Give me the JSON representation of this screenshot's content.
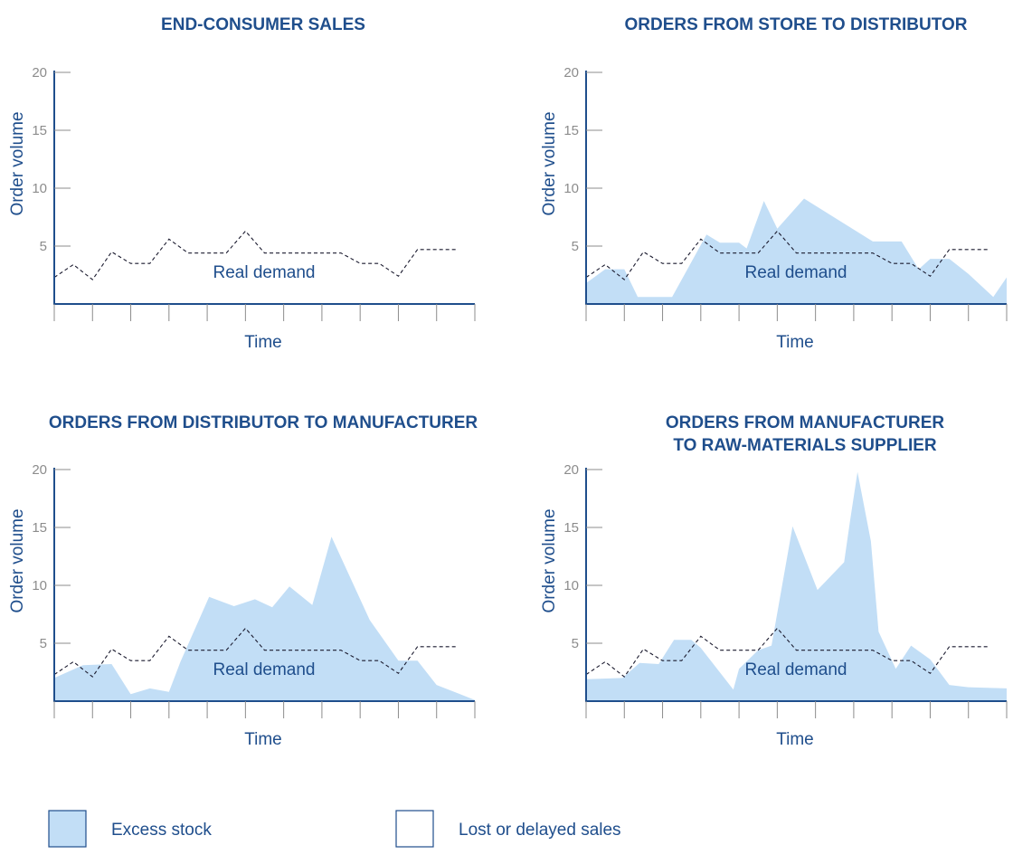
{
  "colors": {
    "accent": "#1f4e8c",
    "excess_fill": "#c2def6",
    "tick_text": "#8c8c8c",
    "axis": "#1f4e8c"
  },
  "chart_data": [
    {
      "type": "area",
      "title": "END-CONSUMER SALES",
      "title_line2": "",
      "xlabel": "Time",
      "ylabel": "Order volume",
      "annotation": "Real demand",
      "ylim": [
        0,
        20
      ],
      "yticks": [
        5,
        10,
        15,
        20
      ],
      "x_ticks": 12,
      "real_demand": [
        [
          0,
          2.3
        ],
        [
          1,
          3.4
        ],
        [
          2,
          2.1
        ],
        [
          3,
          4.5
        ],
        [
          4,
          3.5
        ],
        [
          5,
          3.5
        ],
        [
          6,
          5.6
        ],
        [
          7,
          4.4
        ],
        [
          8,
          4.4
        ],
        [
          9,
          4.4
        ],
        [
          10,
          6.3
        ],
        [
          11,
          4.4
        ],
        [
          12,
          4.4
        ],
        [
          13,
          4.4
        ],
        [
          14,
          4.4
        ],
        [
          15,
          4.4
        ],
        [
          16,
          3.5
        ],
        [
          17,
          3.5
        ],
        [
          18,
          2.4
        ],
        [
          19,
          4.7
        ],
        [
          20,
          4.7
        ],
        [
          21,
          4.7
        ]
      ],
      "orders": []
    },
    {
      "type": "area",
      "title": "ORDERS FROM STORE TO DISTRIBUTOR",
      "title_line2": "",
      "xlabel": "Time",
      "ylabel": "Order volume",
      "annotation": "Real demand",
      "ylim": [
        0,
        20
      ],
      "yticks": [
        5,
        10,
        15,
        20
      ],
      "x_ticks": 12,
      "real_demand": [
        [
          0,
          2.3
        ],
        [
          1,
          3.4
        ],
        [
          2,
          2.1
        ],
        [
          3,
          4.5
        ],
        [
          4,
          3.5
        ],
        [
          5,
          3.5
        ],
        [
          6,
          5.6
        ],
        [
          7,
          4.4
        ],
        [
          8,
          4.4
        ],
        [
          9,
          4.4
        ],
        [
          10,
          6.3
        ],
        [
          11,
          4.4
        ],
        [
          12,
          4.4
        ],
        [
          13,
          4.4
        ],
        [
          14,
          4.4
        ],
        [
          15,
          4.4
        ],
        [
          16,
          3.5
        ],
        [
          17,
          3.5
        ],
        [
          18,
          2.4
        ],
        [
          19,
          4.7
        ],
        [
          20,
          4.7
        ],
        [
          21,
          4.7
        ]
      ],
      "orders": [
        [
          0,
          1.8
        ],
        [
          1,
          3.0
        ],
        [
          2,
          3.0
        ],
        [
          2.7,
          0.6
        ],
        [
          4.5,
          0.6
        ],
        [
          6.3,
          6.0
        ],
        [
          7.0,
          5.3
        ],
        [
          8.0,
          5.3
        ],
        [
          8.4,
          4.8
        ],
        [
          9.3,
          8.9
        ],
        [
          10.0,
          6.5
        ],
        [
          11.4,
          9.1
        ],
        [
          15.0,
          5.4
        ],
        [
          16.5,
          5.4
        ],
        [
          17.4,
          3.0
        ],
        [
          18.0,
          3.9
        ],
        [
          19.0,
          3.9
        ],
        [
          20.0,
          2.6
        ],
        [
          21.3,
          0.6
        ],
        [
          22.0,
          2.3
        ]
      ]
    },
    {
      "type": "area",
      "title": "ORDERS FROM DISTRIBUTOR TO MANUFACTURER",
      "title_line2": "",
      "xlabel": "Time",
      "ylabel": "Order volume",
      "annotation": "Real demand",
      "ylim": [
        0,
        20
      ],
      "yticks": [
        5,
        10,
        15,
        20
      ],
      "x_ticks": 12,
      "real_demand": [
        [
          0,
          2.3
        ],
        [
          1,
          3.4
        ],
        [
          2,
          2.1
        ],
        [
          3,
          4.5
        ],
        [
          4,
          3.5
        ],
        [
          5,
          3.5
        ],
        [
          6,
          5.6
        ],
        [
          7,
          4.4
        ],
        [
          8,
          4.4
        ],
        [
          9,
          4.4
        ],
        [
          10,
          6.3
        ],
        [
          11,
          4.4
        ],
        [
          12,
          4.4
        ],
        [
          13,
          4.4
        ],
        [
          14,
          4.4
        ],
        [
          15,
          4.4
        ],
        [
          16,
          3.5
        ],
        [
          17,
          3.5
        ],
        [
          18,
          2.4
        ],
        [
          19,
          4.7
        ],
        [
          20,
          4.7
        ],
        [
          21,
          4.7
        ]
      ],
      "orders": [
        [
          0,
          2.0
        ],
        [
          1.5,
          3.1
        ],
        [
          3.0,
          3.2
        ],
        [
          4.0,
          0.6
        ],
        [
          5.0,
          1.1
        ],
        [
          6.0,
          0.8
        ],
        [
          6.6,
          3.4
        ],
        [
          8.1,
          9.0
        ],
        [
          9.4,
          8.2
        ],
        [
          10.5,
          8.8
        ],
        [
          11.4,
          8.1
        ],
        [
          12.3,
          9.9
        ],
        [
          13.5,
          8.3
        ],
        [
          14.5,
          14.2
        ],
        [
          16.5,
          7.0
        ],
        [
          18.0,
          3.5
        ],
        [
          19.0,
          3.5
        ],
        [
          20.0,
          1.4
        ],
        [
          22.0,
          0.1
        ]
      ]
    },
    {
      "type": "area",
      "title": "ORDERS FROM MANUFACTURER",
      "title_line2": "TO RAW-MATERIALS SUPPLIER",
      "xlabel": "Time",
      "ylabel": "Order volume",
      "annotation": "Real demand",
      "ylim": [
        0,
        20
      ],
      "yticks": [
        5,
        10,
        15,
        20
      ],
      "x_ticks": 12,
      "real_demand": [
        [
          0,
          2.3
        ],
        [
          1,
          3.4
        ],
        [
          2,
          2.1
        ],
        [
          3,
          4.5
        ],
        [
          4,
          3.5
        ],
        [
          5,
          3.5
        ],
        [
          6,
          5.6
        ],
        [
          7,
          4.4
        ],
        [
          8,
          4.4
        ],
        [
          9,
          4.4
        ],
        [
          10,
          6.3
        ],
        [
          11,
          4.4
        ],
        [
          12,
          4.4
        ],
        [
          13,
          4.4
        ],
        [
          14,
          4.4
        ],
        [
          15,
          4.4
        ],
        [
          16,
          3.5
        ],
        [
          17,
          3.5
        ],
        [
          18,
          2.4
        ],
        [
          19,
          4.7
        ],
        [
          20,
          4.7
        ],
        [
          21,
          4.7
        ]
      ],
      "orders": [
        [
          0,
          1.9
        ],
        [
          1.9,
          2.0
        ],
        [
          2.8,
          3.3
        ],
        [
          3.8,
          3.2
        ],
        [
          4.6,
          5.3
        ],
        [
          5.5,
          5.3
        ],
        [
          6.0,
          4.6
        ],
        [
          7.7,
          1.0
        ],
        [
          8.0,
          2.8
        ],
        [
          9.0,
          4.4
        ],
        [
          9.7,
          4.8
        ],
        [
          10.8,
          15.1
        ],
        [
          12.1,
          9.6
        ],
        [
          13.5,
          12.0
        ],
        [
          13.8,
          15.5
        ],
        [
          14.2,
          19.8
        ],
        [
          14.9,
          13.8
        ],
        [
          15.3,
          6.0
        ],
        [
          16.2,
          2.8
        ],
        [
          17.0,
          4.8
        ],
        [
          18.0,
          3.6
        ],
        [
          19.0,
          1.4
        ],
        [
          20.0,
          1.2
        ],
        [
          22.0,
          1.1
        ]
      ]
    }
  ],
  "legend": {
    "items": [
      {
        "label": "Excess stock",
        "style": "filled"
      },
      {
        "label": "Lost or delayed sales",
        "style": "outlined"
      }
    ]
  }
}
